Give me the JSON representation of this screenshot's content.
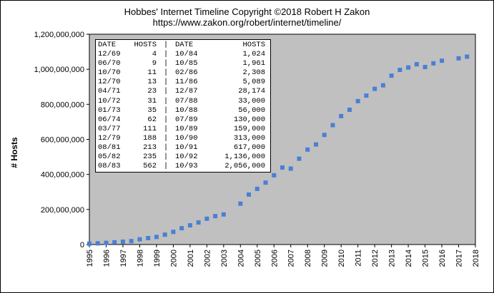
{
  "chart_data": {
    "type": "scatter",
    "title": "Hobbes' Internet Timeline Copyright ©2018 Robert H Zakon",
    "subtitle": "https://www.zakon.org/robert/internet/timeline/",
    "xlabel": "",
    "ylabel": "# Hosts",
    "xlim": [
      1995,
      2018
    ],
    "ylim": [
      0,
      1200000000
    ],
    "x_ticks": [
      "1995",
      "1996",
      "1997",
      "1998",
      "1999",
      "2000",
      "2001",
      "2002",
      "2003",
      "2004",
      "2005",
      "2006",
      "2007",
      "2008",
      "2009",
      "2010",
      "2011",
      "2012",
      "2013",
      "2014",
      "2015",
      "2016",
      "2017",
      "2018"
    ],
    "y_ticks": [
      "0",
      "200,000,000",
      "400,000,000",
      "600,000,000",
      "800,000,000",
      "1,000,000,000",
      "1,200,000,000"
    ],
    "y_tick_values": [
      0,
      200000000,
      400000000,
      600000000,
      800000000,
      1000000000,
      1200000000
    ],
    "grid": false,
    "plot_background": "#c0c0c0",
    "marker_color": "#4a7fd4",
    "series": [
      {
        "points": [
          [
            1995.0,
            4852000
          ],
          [
            1995.5,
            6642000
          ],
          [
            1996.0,
            9472000
          ],
          [
            1996.5,
            12881000
          ],
          [
            1997.0,
            16146000
          ],
          [
            1997.5,
            19540000
          ],
          [
            1998.0,
            29670000
          ],
          [
            1998.5,
            36739000
          ],
          [
            1999.0,
            43230000
          ],
          [
            1999.5,
            56218000
          ],
          [
            2000.0,
            72398092
          ],
          [
            2000.5,
            93047785
          ],
          [
            2001.0,
            109574429
          ],
          [
            2001.5,
            125888197
          ],
          [
            2002.0,
            147344723
          ],
          [
            2002.5,
            162128493
          ],
          [
            2003.0,
            171638297
          ],
          [
            2004.0,
            233101481
          ],
          [
            2004.5,
            285139107
          ],
          [
            2005.0,
            317646084
          ],
          [
            2005.5,
            353284187
          ],
          [
            2006.0,
            394991609
          ],
          [
            2006.5,
            439286364
          ],
          [
            2007.0,
            433193199
          ],
          [
            2007.5,
            489774269
          ],
          [
            2008.0,
            541677360
          ],
          [
            2008.5,
            570937778
          ],
          [
            2009.0,
            625226456
          ],
          [
            2009.5,
            681064561
          ],
          [
            2010.0,
            732740444
          ],
          [
            2010.5,
            768913036
          ],
          [
            2011.0,
            818374269
          ],
          [
            2011.5,
            849869781
          ],
          [
            2012.0,
            888239420
          ],
          [
            2012.5,
            908585739
          ],
          [
            2013.0,
            963518598
          ],
          [
            2013.5,
            996230757
          ],
          [
            2014.0,
            1010251829
          ],
          [
            2014.5,
            1028544414
          ],
          [
            2015.0,
            1012706240
          ],
          [
            2015.5,
            1033836245
          ],
          [
            2016.0,
            1048766623
          ],
          [
            2017.0,
            1062660523
          ],
          [
            2017.5,
            1072000000
          ]
        ]
      }
    ],
    "inset_table": {
      "headers": [
        "DATE",
        "HOSTS",
        "|",
        "DATE",
        "HOSTS"
      ],
      "rows": [
        [
          "12/69",
          "4",
          "|",
          "10/84",
          "1,024"
        ],
        [
          "06/70",
          "9",
          "|",
          "10/85",
          "1,961"
        ],
        [
          "10/70",
          "11",
          "|",
          "02/86",
          "2,308"
        ],
        [
          "12/70",
          "13",
          "|",
          "11/86",
          "5,089"
        ],
        [
          "04/71",
          "23",
          "|",
          "12/87",
          "28,174"
        ],
        [
          "10/72",
          "31",
          "|",
          "07/88",
          "33,000"
        ],
        [
          "01/73",
          "35",
          "|",
          "10/88",
          "56,000"
        ],
        [
          "06/74",
          "62",
          "|",
          "07/89",
          "130,000"
        ],
        [
          "03/77",
          "111",
          "|",
          "10/89",
          "159,000"
        ],
        [
          "12/79",
          "188",
          "|",
          "10/90",
          "313,000"
        ],
        [
          "08/81",
          "213",
          "|",
          "10/91",
          "617,000"
        ],
        [
          "05/82",
          "235",
          "|",
          "10/92",
          "1,136,000"
        ],
        [
          "08/83",
          "562",
          "|",
          "10/93",
          "2,056,000"
        ]
      ]
    }
  }
}
